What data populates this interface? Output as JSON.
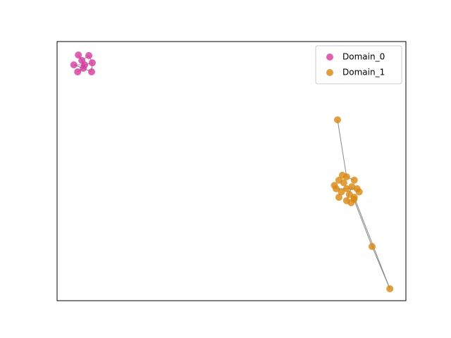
{
  "chart_data": {
    "type": "network",
    "xlim": [
      0,
      1
    ],
    "ylim": [
      0,
      1
    ],
    "legend": "upper right",
    "edge_color": "#888888",
    "series": [
      {
        "name": "Domain_0",
        "color": "#d63a9f",
        "x": [
          0.061,
          0.091,
          0.071,
          0.048,
          0.079,
          0.101,
          0.059,
          0.099,
          0.075
        ],
        "y": [
          0.948,
          0.946,
          0.927,
          0.91,
          0.91,
          0.918,
          0.883,
          0.883,
          0.897
        ],
        "edges": [
          [
            0,
            2
          ],
          [
            1,
            2
          ],
          [
            2,
            4
          ],
          [
            3,
            4
          ],
          [
            4,
            5
          ],
          [
            4,
            8
          ],
          [
            6,
            8
          ],
          [
            7,
            8
          ],
          [
            0,
            4
          ],
          [
            1,
            5
          ],
          [
            3,
            8
          ],
          [
            2,
            8
          ],
          [
            5,
            7
          ]
        ]
      },
      {
        "name": "Domain_1",
        "color": "#d9870f",
        "x": [
          0.804,
          0.903,
          0.954,
          0.83,
          0.86,
          0.8,
          0.83,
          0.83,
          0.852,
          0.808,
          0.852,
          0.808,
          0.845,
          0.815,
          0.838,
          0.822,
          0.866,
          0.795,
          0.843,
          0.818,
          0.851
        ],
        "y": [
          0.698,
          0.209,
          0.046,
          0.432,
          0.432,
          0.432,
          0.478,
          0.386,
          0.465,
          0.465,
          0.399,
          0.399,
          0.44,
          0.42,
          0.41,
          0.455,
          0.42,
          0.445,
          0.378,
          0.484,
          0.391
        ],
        "edges": [
          [
            0,
            6
          ],
          [
            1,
            20
          ],
          [
            2,
            10
          ],
          [
            2,
            1
          ],
          [
            3,
            4
          ],
          [
            3,
            5
          ],
          [
            6,
            8
          ],
          [
            7,
            12
          ]
        ]
      }
    ]
  }
}
